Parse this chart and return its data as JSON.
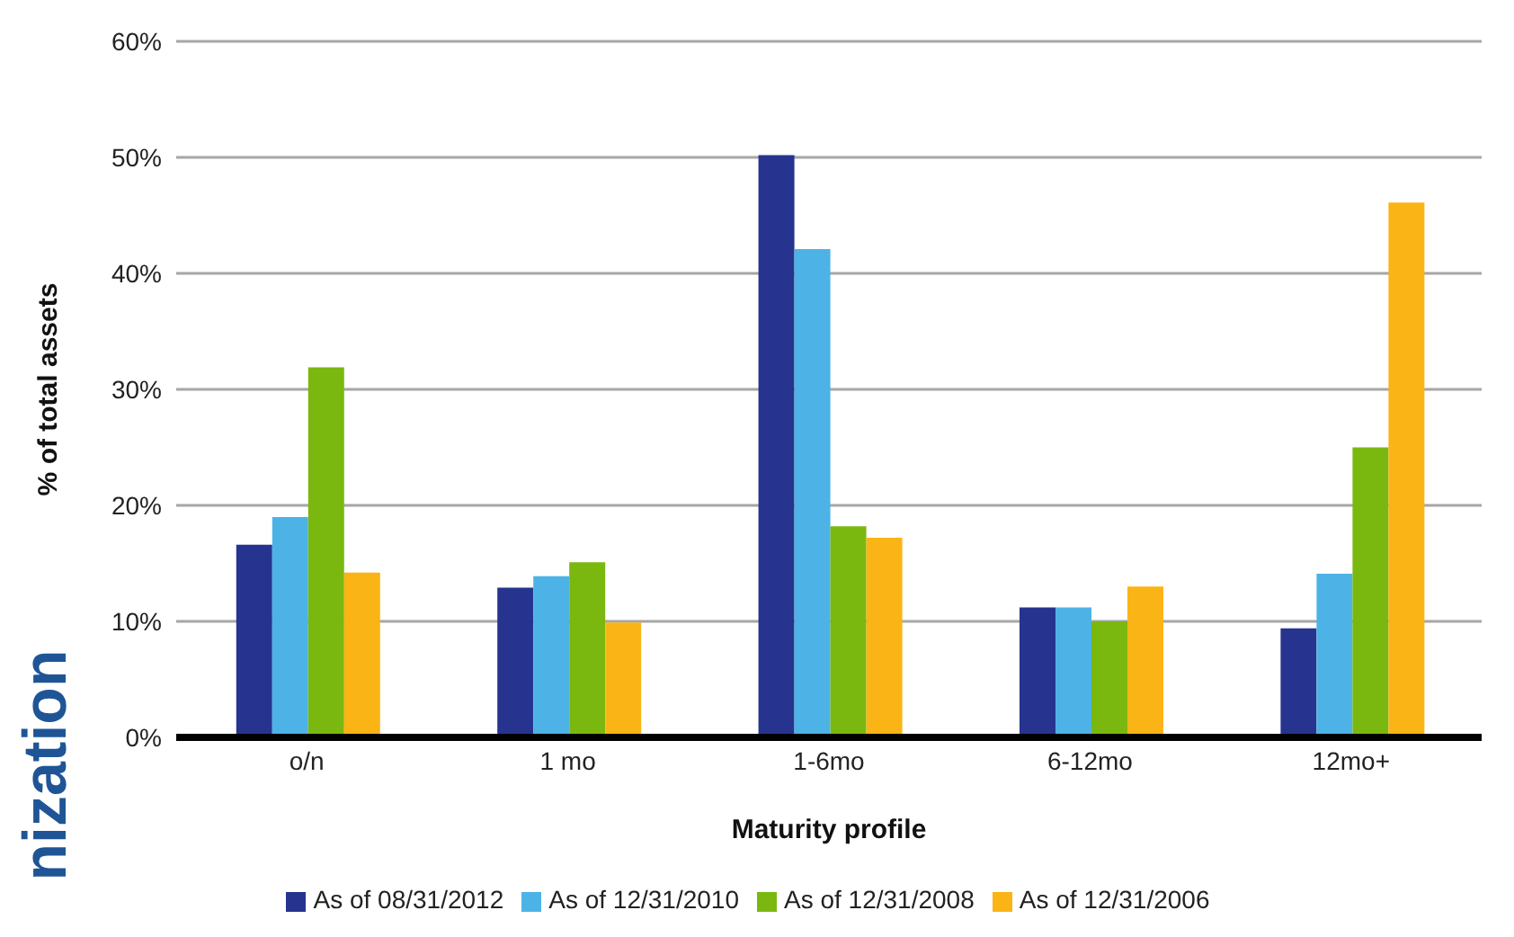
{
  "chart_data": {
    "type": "bar",
    "xlabel": "Maturity profile",
    "ylabel": "% of total assets",
    "categories": [
      "o/n",
      "1 mo",
      "1-6mo",
      "6-12mo",
      "12mo+"
    ],
    "series": [
      {
        "name": "As of 08/31/2012",
        "color": "#26348f",
        "values": [
          16.6,
          12.9,
          50.2,
          11.2,
          9.4
        ]
      },
      {
        "name": "As of 12/31/2010",
        "color": "#4db3e6",
        "values": [
          19.0,
          13.9,
          42.1,
          11.2,
          14.1
        ]
      },
      {
        "name": "As of 12/31/2008",
        "color": "#7ab80f",
        "values": [
          31.9,
          15.1,
          18.2,
          10.0,
          25.0
        ]
      },
      {
        "name": "As of 12/31/2006",
        "color": "#fbb416",
        "values": [
          14.2,
          9.9,
          17.2,
          13.0,
          46.1
        ]
      }
    ],
    "ylim": [
      0,
      60
    ],
    "yticks": [
      {
        "value": 0,
        "label": "0%"
      },
      {
        "value": 10,
        "label": "10%"
      },
      {
        "value": 20,
        "label": "20%"
      },
      {
        "value": 30,
        "label": "30%"
      },
      {
        "value": 40,
        "label": "40%"
      },
      {
        "value": 50,
        "label": "50%"
      },
      {
        "value": 60,
        "label": "60%"
      }
    ],
    "grid": "y",
    "legend": "bottom",
    "annotations": [
      "nization"
    ]
  }
}
